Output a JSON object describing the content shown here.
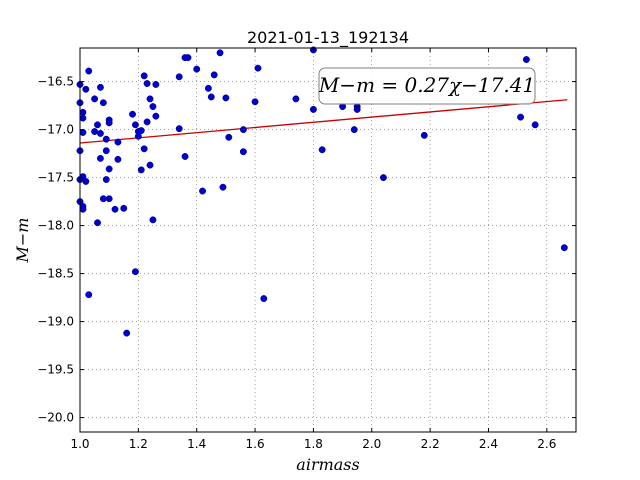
{
  "chart_data": {
    "type": "scatter",
    "title": "2021-01-13_192134",
    "xlabel": "airmass",
    "ylabel": "M−m",
    "xlim": [
      1.0,
      2.7
    ],
    "ylim": [
      -20.15,
      -16.15
    ],
    "xticks": [
      1.0,
      1.2,
      1.4,
      1.6,
      1.8,
      2.0,
      2.2,
      2.4,
      2.6
    ],
    "xtick_labels": [
      "1.0",
      "1.2",
      "1.4",
      "1.6",
      "1.8",
      "2.0",
      "2.2",
      "2.4",
      "2.6"
    ],
    "yticks": [
      -16.5,
      -17.0,
      -17.5,
      -18.0,
      -18.5,
      -19.0,
      -19.5,
      -20.0
    ],
    "ytick_labels": [
      "−16.5",
      "−17.0",
      "−17.5",
      "−18.0",
      "−18.5",
      "−19.0",
      "−19.5",
      "−20.0"
    ],
    "grid": true,
    "annotation": "M−m = 0.27χ−17.41",
    "annotation_position": "top-right",
    "colors": {
      "points": "#0000cc",
      "fit_line": "#cc0000"
    },
    "fit_line": {
      "slope": 0.27,
      "intercept": -17.41,
      "x": [
        1.0,
        2.67
      ]
    },
    "points": [
      {
        "x": 1.0,
        "y": -16.53
      },
      {
        "x": 1.0,
        "y": -16.72
      },
      {
        "x": 1.0,
        "y": -17.22
      },
      {
        "x": 1.0,
        "y": -17.52
      },
      {
        "x": 1.0,
        "y": -17.75
      },
      {
        "x": 1.01,
        "y": -16.82
      },
      {
        "x": 1.01,
        "y": -16.88
      },
      {
        "x": 1.01,
        "y": -17.03
      },
      {
        "x": 1.01,
        "y": -17.49
      },
      {
        "x": 1.01,
        "y": -17.8
      },
      {
        "x": 1.01,
        "y": -17.83
      },
      {
        "x": 1.02,
        "y": -16.58
      },
      {
        "x": 1.02,
        "y": -17.54
      },
      {
        "x": 1.03,
        "y": -16.39
      },
      {
        "x": 1.03,
        "y": -18.72
      },
      {
        "x": 1.05,
        "y": -16.68
      },
      {
        "x": 1.05,
        "y": -17.02
      },
      {
        "x": 1.06,
        "y": -16.95
      },
      {
        "x": 1.06,
        "y": -17.97
      },
      {
        "x": 1.07,
        "y": -16.56
      },
      {
        "x": 1.07,
        "y": -17.04
      },
      {
        "x": 1.07,
        "y": -17.3
      },
      {
        "x": 1.08,
        "y": -16.72
      },
      {
        "x": 1.08,
        "y": -17.72
      },
      {
        "x": 1.09,
        "y": -17.22
      },
      {
        "x": 1.09,
        "y": -17.52
      },
      {
        "x": 1.09,
        "y": -17.1
      },
      {
        "x": 1.1,
        "y": -16.9
      },
      {
        "x": 1.1,
        "y": -16.93
      },
      {
        "x": 1.1,
        "y": -17.41
      },
      {
        "x": 1.1,
        "y": -17.72
      },
      {
        "x": 1.12,
        "y": -17.83
      },
      {
        "x": 1.13,
        "y": -17.13
      },
      {
        "x": 1.13,
        "y": -17.31
      },
      {
        "x": 1.15,
        "y": -17.82
      },
      {
        "x": 1.16,
        "y": -19.12
      },
      {
        "x": 1.18,
        "y": -16.84
      },
      {
        "x": 1.19,
        "y": -16.95
      },
      {
        "x": 1.19,
        "y": -18.48
      },
      {
        "x": 1.2,
        "y": -17.02
      },
      {
        "x": 1.2,
        "y": -17.07
      },
      {
        "x": 1.21,
        "y": -17.01
      },
      {
        "x": 1.21,
        "y": -17.42
      },
      {
        "x": 1.22,
        "y": -16.44
      },
      {
        "x": 1.22,
        "y": -17.2
      },
      {
        "x": 1.23,
        "y": -16.52
      },
      {
        "x": 1.23,
        "y": -16.92
      },
      {
        "x": 1.24,
        "y": -17.37
      },
      {
        "x": 1.24,
        "y": -16.68
      },
      {
        "x": 1.25,
        "y": -16.76
      },
      {
        "x": 1.25,
        "y": -17.94
      },
      {
        "x": 1.26,
        "y": -16.53
      },
      {
        "x": 1.26,
        "y": -16.86
      },
      {
        "x": 1.34,
        "y": -16.45
      },
      {
        "x": 1.34,
        "y": -16.99
      },
      {
        "x": 1.36,
        "y": -17.28
      },
      {
        "x": 1.36,
        "y": -16.25
      },
      {
        "x": 1.37,
        "y": -16.25
      },
      {
        "x": 1.4,
        "y": -16.37
      },
      {
        "x": 1.42,
        "y": -17.64
      },
      {
        "x": 1.44,
        "y": -16.57
      },
      {
        "x": 1.45,
        "y": -16.66
      },
      {
        "x": 1.46,
        "y": -16.43
      },
      {
        "x": 1.48,
        "y": -16.2
      },
      {
        "x": 1.49,
        "y": -17.6
      },
      {
        "x": 1.5,
        "y": -16.67
      },
      {
        "x": 1.51,
        "y": -17.08
      },
      {
        "x": 1.56,
        "y": -17.0
      },
      {
        "x": 1.56,
        "y": -17.23
      },
      {
        "x": 1.6,
        "y": -16.71
      },
      {
        "x": 1.61,
        "y": -16.36
      },
      {
        "x": 1.63,
        "y": -18.76
      },
      {
        "x": 1.74,
        "y": -16.68
      },
      {
        "x": 1.8,
        "y": -16.17
      },
      {
        "x": 1.8,
        "y": -16.79
      },
      {
        "x": 1.83,
        "y": -17.21
      },
      {
        "x": 1.9,
        "y": -16.76
      },
      {
        "x": 1.94,
        "y": -17.0
      },
      {
        "x": 1.95,
        "y": -16.76
      },
      {
        "x": 1.95,
        "y": -16.79
      },
      {
        "x": 2.04,
        "y": -17.5
      },
      {
        "x": 2.18,
        "y": -17.06
      },
      {
        "x": 2.51,
        "y": -16.87
      },
      {
        "x": 2.53,
        "y": -16.27
      },
      {
        "x": 2.56,
        "y": -16.95
      },
      {
        "x": 2.66,
        "y": -18.23
      }
    ]
  }
}
